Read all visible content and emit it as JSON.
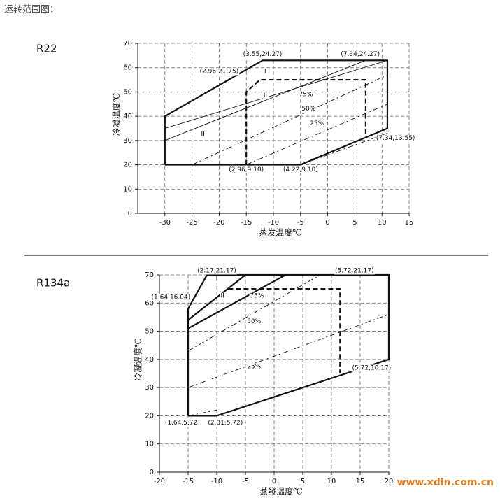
{
  "header": {
    "title": "运转范围图："
  },
  "watermark": "www.xdln.com.cn",
  "chart_data": [
    {
      "type": "line",
      "name": "R22",
      "ylabel": "冷凝温度℃",
      "xlabel": "蒸发温度℃",
      "xlim": [
        -35,
        15
      ],
      "xticks": [
        -30,
        -25,
        -20,
        -15,
        -10,
        -5,
        0,
        5,
        10,
        15
      ],
      "ylim": [
        0,
        70
      ],
      "yticks": [
        0,
        10,
        20,
        30,
        40,
        50,
        60,
        70
      ],
      "grid": true,
      "series": [
        {
          "color": "#111",
          "stroke": "thick",
          "dash": false,
          "x": [
            -30,
            -30,
            -12,
            11,
            11,
            -5,
            -30
          ],
          "y": [
            20,
            40,
            63,
            63,
            35,
            20,
            20
          ]
        },
        {
          "color": "#111",
          "stroke": "thick",
          "dash": true,
          "x": [
            -15,
            -15,
            -12.5,
            7,
            7
          ],
          "y": [
            20,
            50,
            55,
            55,
            32
          ]
        },
        {
          "color": "#111",
          "stroke": "thin",
          "dash": false,
          "x": [
            -30,
            7
          ],
          "y": [
            30,
            63
          ]
        },
        {
          "color": "#111",
          "stroke": "thin",
          "dash": false,
          "x": [
            -30,
            11
          ],
          "y": [
            35,
            63
          ]
        },
        {
          "color": "#111",
          "stroke": "thin",
          "dash": true,
          "x": [
            -25,
            11
          ],
          "y": [
            20,
            57
          ]
        },
        {
          "color": "#111",
          "stroke": "thin",
          "dash": true,
          "x": [
            -15,
            11
          ],
          "y": [
            20,
            45
          ]
        },
        {
          "color": "#111",
          "stroke": "thin",
          "dash": true,
          "x": [
            -5,
            11
          ],
          "y": [
            20,
            33
          ]
        }
      ],
      "annotations": [
        {
          "text": "(3.55,24.27)",
          "x": -12,
          "y": 65.5
        },
        {
          "text": "(7.34,24.27)",
          "x": 6,
          "y": 65.5
        },
        {
          "text": "(2.96,21.75)",
          "x": -20,
          "y": 58.5
        },
        {
          "text": "I",
          "x": -11.5,
          "y": 58.5
        },
        {
          "text": "II",
          "x": -11.5,
          "y": 48.5
        },
        {
          "text": "II",
          "x": -23,
          "y": 32.5
        },
        {
          "text": "75%",
          "x": -4,
          "y": 49
        },
        {
          "text": "50%",
          "x": -3.5,
          "y": 43
        },
        {
          "text": "25%",
          "x": -2,
          "y": 37
        },
        {
          "text": "(7.34,13.55)",
          "x": 12.5,
          "y": 31
        },
        {
          "text": "(2.96,9.10)",
          "x": -15,
          "y": 18
        },
        {
          "text": "(4.22,9.10)",
          "x": -5,
          "y": 18
        }
      ]
    },
    {
      "type": "line",
      "name": "R134a",
      "ylabel": "冷凝温度℃",
      "xlabel": "蒸發温度℃",
      "xlim": [
        -20,
        20
      ],
      "xticks": [
        -20,
        -15,
        -10,
        -5,
        0,
        5,
        10,
        15,
        20
      ],
      "ylim": [
        0,
        70
      ],
      "yticks": [
        0,
        10,
        20,
        30,
        40,
        50,
        60,
        70
      ],
      "grid": true,
      "series": [
        {
          "color": "#111",
          "stroke": "thick",
          "dash": false,
          "x": [
            -15,
            -15,
            -11.7,
            20,
            20,
            -10,
            -15
          ],
          "y": [
            20,
            58,
            70,
            70,
            40,
            20,
            20
          ]
        },
        {
          "color": "#111",
          "stroke": "thick",
          "dash": true,
          "x": [
            -8,
            11.5,
            11.5
          ],
          "y": [
            65,
            65,
            35
          ]
        },
        {
          "color": "#111",
          "stroke": "thick",
          "dash": false,
          "x": [
            -15,
            -5
          ],
          "y": [
            54,
            70
          ]
        },
        {
          "color": "#111",
          "stroke": "thick",
          "dash": false,
          "x": [
            -15,
            2
          ],
          "y": [
            51,
            70
          ]
        },
        {
          "color": "#111",
          "stroke": "thin",
          "dash": true,
          "x": [
            -15,
            8
          ],
          "y": [
            43,
            70
          ]
        },
        {
          "color": "#111",
          "stroke": "thin",
          "dash": true,
          "x": [
            -15,
            20
          ],
          "y": [
            30,
            56
          ]
        },
        {
          "color": "#111",
          "stroke": "thin",
          "dash": true,
          "x": [
            -15,
            -10
          ],
          "y": [
            20,
            22
          ]
        }
      ],
      "annotations": [
        {
          "text": "(2.17,21.17)",
          "x": -10,
          "y": 71.5
        },
        {
          "text": "(5.72,21.17)",
          "x": 14,
          "y": 71.5
        },
        {
          "text": "(1.64,16.04)",
          "x": -18,
          "y": 62
        },
        {
          "text": "I",
          "x": -10,
          "y": 68.5
        },
        {
          "text": "II",
          "x": -9,
          "y": 62.5
        },
        {
          "text": "75%",
          "x": -3,
          "y": 62.5
        },
        {
          "text": "50%",
          "x": -3.5,
          "y": 53.5
        },
        {
          "text": "25%",
          "x": -3.5,
          "y": 37.5
        },
        {
          "text": "(5.72,10.17)",
          "x": 17,
          "y": 37
        },
        {
          "text": "(1.64,5.72)",
          "x": -16,
          "y": 17.5
        },
        {
          "text": "(2.01,5.72)",
          "x": -8.5,
          "y": 17.5
        }
      ]
    }
  ]
}
